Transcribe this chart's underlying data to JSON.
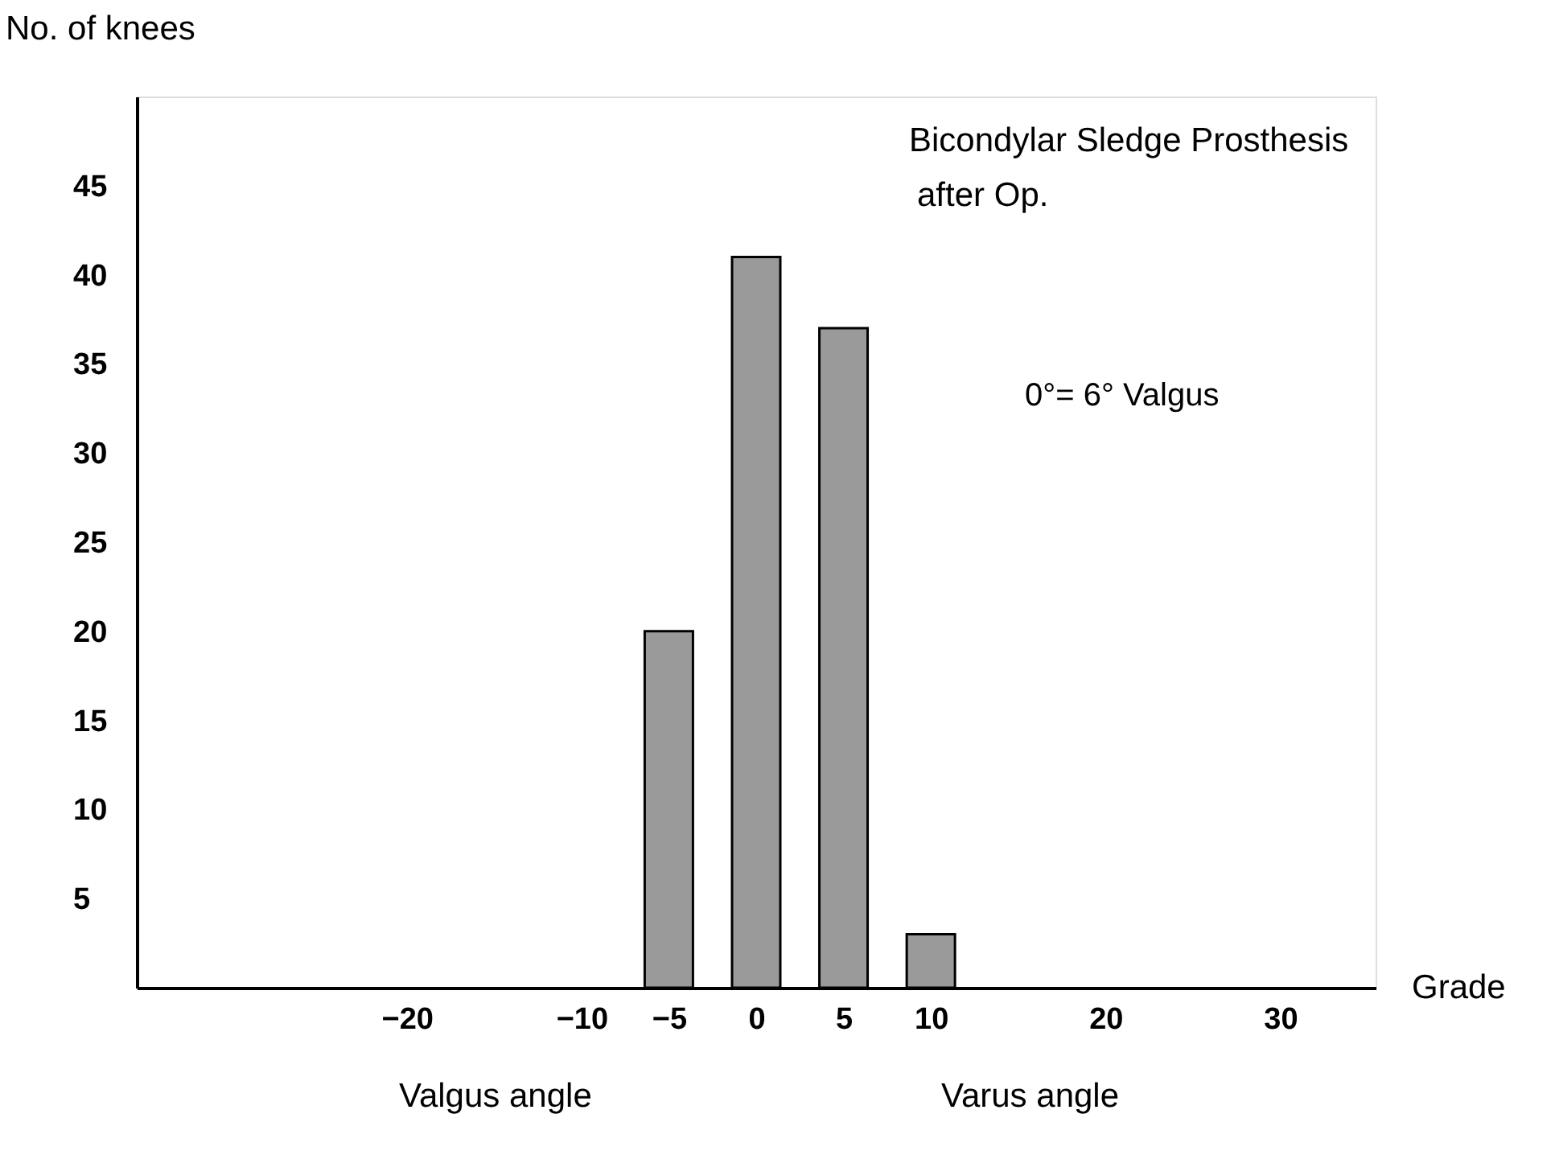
{
  "chart_data": {
    "type": "bar",
    "xlabel": "Grade",
    "ylabel": "No. of knees",
    "x": [
      -5,
      0,
      5,
      10
    ],
    "values": [
      20,
      41,
      37,
      3
    ],
    "color": "#9a9a9a",
    "xlim": [
      -35,
      35
    ],
    "xticks": [
      -20,
      -10,
      -5,
      0,
      5,
      10,
      20,
      30
    ],
    "ylim": [
      0,
      50
    ],
    "yticks": [
      5,
      10,
      15,
      20,
      25,
      30,
      35,
      40,
      45
    ],
    "grid": false,
    "annotations": [
      "Bicondylar Sledge Prosthesis",
      "after Op.",
      "0°= 6° Valgus",
      "Valgus angle",
      "Varus angle"
    ]
  }
}
